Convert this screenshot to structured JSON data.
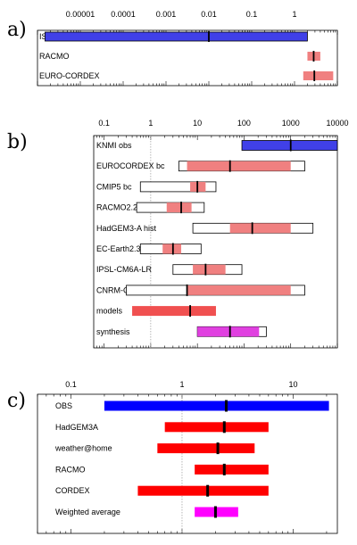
{
  "colors": {
    "obs_blue": "#4040e8",
    "model_pink": "#f08080",
    "synthesis_magenta": "#e040e0",
    "red": "#ff0000",
    "blue": "#0000ff",
    "magenta": "#ff00ff",
    "outline": "#000000"
  },
  "chart_data": [
    {
      "type": "bar",
      "panel_label": "a)",
      "scale": "log",
      "xlim": [
        1e-06,
        10
      ],
      "tick_values": [
        1e-05,
        0.0001,
        0.001,
        0.01,
        0.1,
        1
      ],
      "tick_labels": [
        "0.00001",
        "0.0001",
        "0.001",
        "0.01",
        "0.1",
        "1"
      ],
      "rows": [
        {
          "label": "ISD-lite",
          "style": "obs",
          "low": 1.5e-06,
          "high": 2.0,
          "best": 0.01,
          "outer_low": null,
          "outer_high": null
        },
        {
          "label": "RACMO",
          "style": "model",
          "low": 2.0,
          "high": 4.0,
          "best": 2.8,
          "outer_low": null,
          "outer_high": null
        },
        {
          "label": "EURO-CORDEX",
          "style": "model",
          "low": 1.6,
          "high": 8.0,
          "best": 2.9,
          "outer_low": null,
          "outer_high": null
        }
      ]
    },
    {
      "type": "bar",
      "panel_label": "b)",
      "scale": "log",
      "xlim": [
        0.06,
        10000
      ],
      "reference_line": 1,
      "tick_values": [
        0.1,
        1,
        10,
        100,
        1000,
        10000
      ],
      "tick_labels": [
        "0.1",
        "1",
        "10",
        "100",
        "1000",
        "10000"
      ],
      "rows": [
        {
          "label": "KNMI obs",
          "style": "obs",
          "low": 90,
          "high": 10000,
          "best": 1000,
          "outer_low": null,
          "outer_high": null
        },
        {
          "label": "EUROCORDEX bc",
          "style": "model",
          "low": 6,
          "high": 1000,
          "best": 50,
          "outer_low": 4,
          "outer_high": 2000
        },
        {
          "label": "CMIP5 bc",
          "style": "model",
          "low": 7,
          "high": 15,
          "best": 10,
          "outer_low": 0.6,
          "outer_high": 25
        },
        {
          "label": "RACMO2.2",
          "style": "model",
          "low": 2.2,
          "high": 7.5,
          "best": 4.5,
          "outer_low": 0.5,
          "outer_high": 14
        },
        {
          "label": "HadGEM3-A hist",
          "style": "model",
          "low": 50,
          "high": 1000,
          "best": 150,
          "outer_low": 8,
          "outer_high": 3000
        },
        {
          "label": "EC-Earth2.3 bc",
          "style": "model",
          "low": 1.8,
          "high": 4.5,
          "best": 3,
          "outer_low": 0.6,
          "outer_high": 12
        },
        {
          "label": "IPSL-CM6A-LR",
          "style": "model",
          "low": 8,
          "high": 40,
          "best": 15,
          "outer_low": 3,
          "outer_high": 90
        },
        {
          "label": "CNRM-CM6.1",
          "style": "model",
          "low": 6,
          "high": 1000,
          "best": 6,
          "outer_low": 0.3,
          "outer_high": 2000
        },
        {
          "label": "models",
          "style": "multi",
          "low": 0.4,
          "high": 25,
          "best": 7,
          "outer_low": null,
          "outer_high": null
        },
        {
          "label": "synthesis",
          "style": "synthesis",
          "low": 10,
          "high": 210,
          "best": 50,
          "outer_low": 10,
          "outer_high": 300
        }
      ]
    },
    {
      "type": "bar",
      "panel_label": "c)",
      "scale": "log",
      "reference_line": 1,
      "xlim": [
        0.05,
        25
      ],
      "tick_values": [
        0.1,
        1,
        10
      ],
      "tick_labels": [
        "0.1",
        "1",
        "10"
      ],
      "rows": [
        {
          "label": "OBS",
          "style": "solid_blue",
          "low": 0.2,
          "high": 21,
          "best": 2.5,
          "outer_low": null,
          "outer_high": null
        },
        {
          "label": "HadGEM3A",
          "style": "solid_red",
          "low": 0.7,
          "high": 6,
          "best": 2.4,
          "outer_low": null,
          "outer_high": null
        },
        {
          "label": "weather@home",
          "style": "solid_red",
          "low": 0.6,
          "high": 4.5,
          "best": 2.1,
          "outer_low": null,
          "outer_high": null
        },
        {
          "label": "RACMO",
          "style": "solid_red",
          "low": 1.3,
          "high": 6,
          "best": 2.4,
          "outer_low": null,
          "outer_high": null
        },
        {
          "label": "CORDEX",
          "style": "solid_red",
          "low": 0.4,
          "high": 6,
          "best": 1.7,
          "outer_low": null,
          "outer_high": null
        },
        {
          "label": "Weighted average",
          "style": "solid_magenta",
          "low": 1.3,
          "high": 3.2,
          "best": 2.0,
          "outer_low": null,
          "outer_high": null
        }
      ]
    }
  ]
}
